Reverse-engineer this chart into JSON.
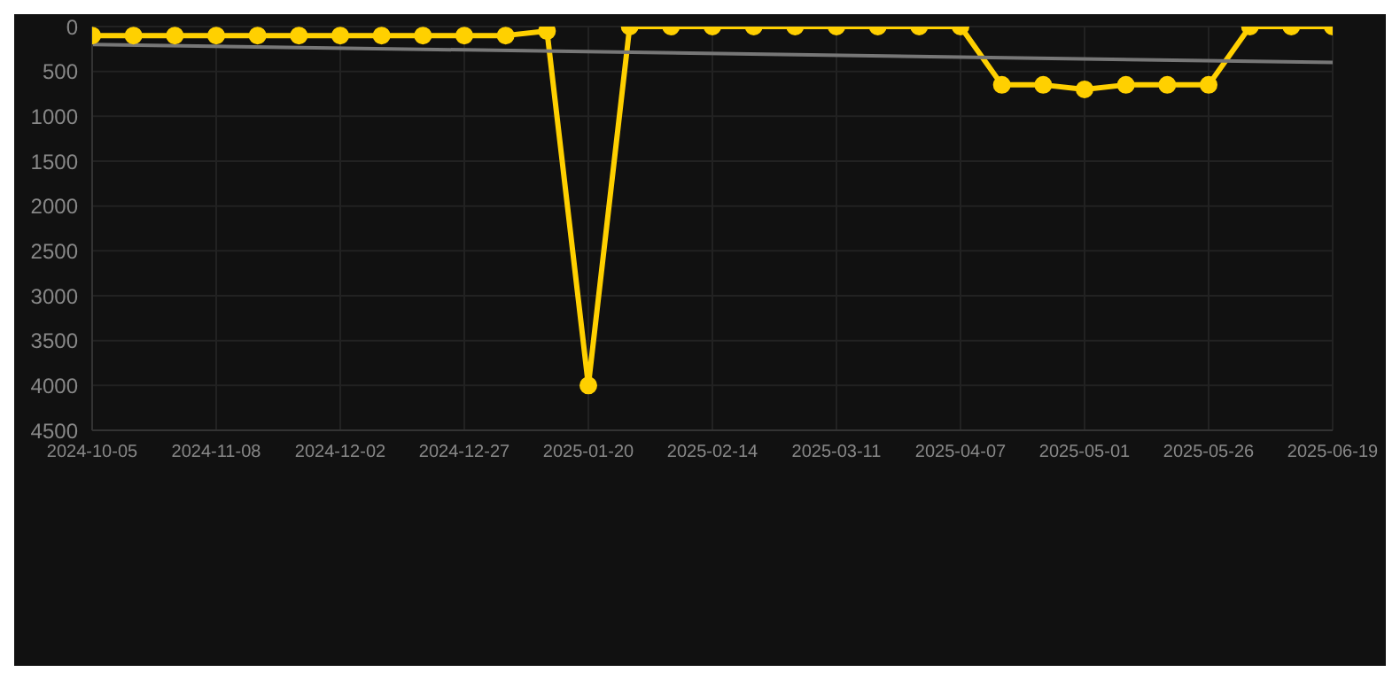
{
  "chart_data": {
    "type": "line",
    "categories": [
      "2024-10-05",
      null,
      null,
      "2024-11-08",
      null,
      null,
      "2024-12-02",
      null,
      null,
      "2024-12-27",
      null,
      null,
      "2025-01-20",
      null,
      null,
      "2025-02-14",
      null,
      null,
      "2025-03-11",
      null,
      null,
      "2025-04-07",
      null,
      null,
      "2025-05-01",
      null,
      null,
      "2025-05-26",
      null,
      null,
      "2025-06-19"
    ],
    "series": [
      {
        "color": "#ffd000",
        "marker": "circle",
        "values": [
          100,
          100,
          100,
          100,
          100,
          100,
          100,
          100,
          100,
          100,
          100,
          50,
          4000,
          0,
          0,
          0,
          0,
          0,
          0,
          0,
          0,
          0,
          650,
          650,
          700,
          650,
          650,
          650,
          0,
          0,
          0
        ]
      },
      {
        "type": "line",
        "color": "#777777",
        "marker": "none",
        "values": [
          200,
          null,
          null,
          null,
          null,
          null,
          null,
          null,
          null,
          null,
          null,
          null,
          null,
          null,
          null,
          null,
          null,
          null,
          null,
          null,
          null,
          null,
          null,
          null,
          null,
          null,
          null,
          null,
          null,
          null,
          400
        ]
      }
    ],
    "ylim": [
      4500,
      0
    ],
    "yticks": [
      0,
      500,
      1000,
      1500,
      2000,
      2500,
      3000,
      3500,
      4000,
      4500
    ],
    "grid": true,
    "legend": false
  }
}
